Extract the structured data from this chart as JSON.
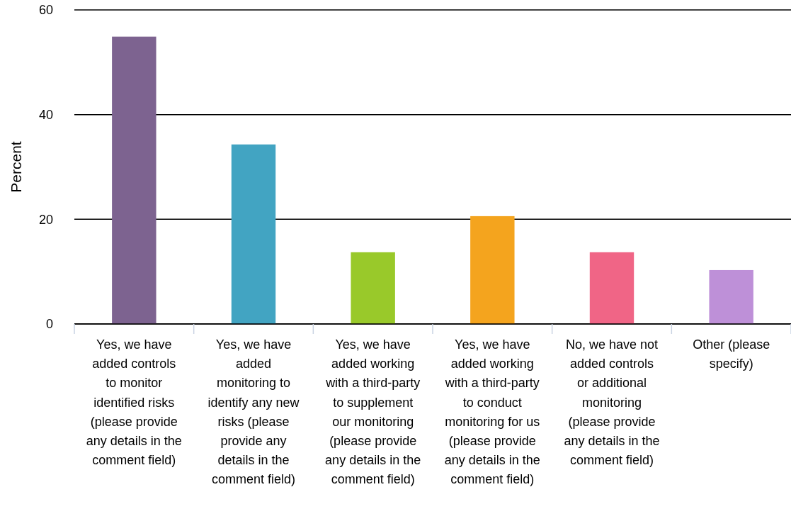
{
  "chart_data": {
    "type": "bar",
    "ylabel": "Percent",
    "categories": [
      "Yes, we have added controls to monitor identified risks (please provide any details in the comment field)",
      "Yes, we have added monitoring to identify any new risks (please provide any details in the comment field)",
      "Yes, we have added working with a third-party to supplement our monitoring (please provide any details in the comment field)",
      "Yes, we have added working with a third-party to conduct monitoring for us (please provide any details in the comment field)",
      "No, we have not added controls or additional monitoring (please provide any details in the comment field)",
      "Other (please specify)"
    ],
    "values": [
      54.9,
      34.3,
      13.7,
      20.6,
      13.7,
      10.3
    ],
    "colors": [
      "#7d6390",
      "#42a4c2",
      "#99c92a",
      "#f4a41e",
      "#f06586",
      "#be90d8"
    ],
    "ylim": [
      0,
      60
    ],
    "yticks": [
      0,
      20,
      40,
      60
    ],
    "grid": "y"
  }
}
